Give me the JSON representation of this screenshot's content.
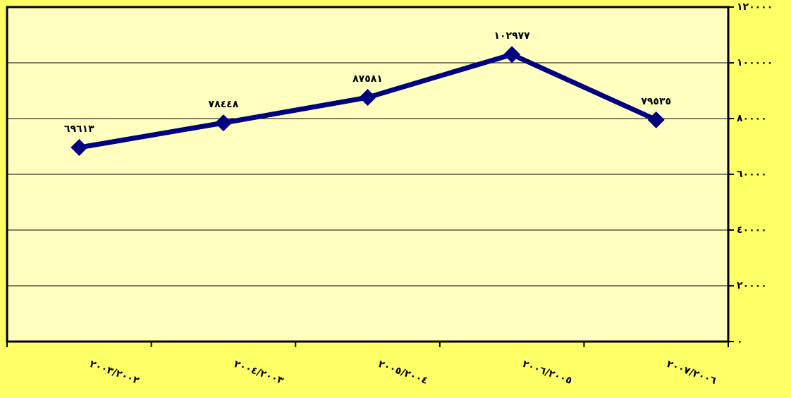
{
  "chart_data": {
    "type": "line",
    "categories": [
      "٢٠٠٣/٢٠٠٢",
      "٢٠٠٤/٢٠٠٣",
      "٢٠٠٥/٢٠٠٤",
      "٢٠٠٦/٢٠٠٥",
      "٢٠٠٧/٢٠٠٦"
    ],
    "values": [
      69613,
      78448,
      87581,
      102977,
      79535
    ],
    "value_labels": [
      "٦٩٦١٣",
      "٧٨٤٤٨",
      "٨٧٥٨١",
      "١٠٢٩٧٧",
      "٧٩٥٣٥"
    ],
    "color": "#000080",
    "ylim": [
      0,
      120000
    ],
    "yticks": [
      {
        "value": 0,
        "label": "٠"
      },
      {
        "value": 20000,
        "label": "٢٠٠٠٠"
      },
      {
        "value": 40000,
        "label": "٤٠٠٠٠"
      },
      {
        "value": 60000,
        "label": "٦٠٠٠٠"
      },
      {
        "value": 80000,
        "label": "٨٠٠٠٠"
      },
      {
        "value": 100000,
        "label": "١٠٠٠٠٠"
      },
      {
        "value": 120000,
        "label": "١٢٠٠٠٠"
      }
    ],
    "grid": true
  }
}
